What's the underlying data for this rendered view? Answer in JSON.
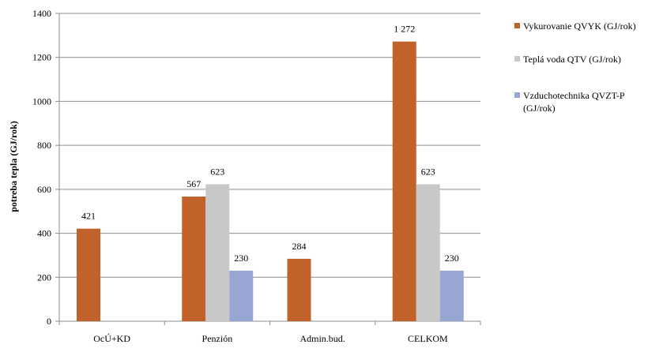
{
  "chart_data": {
    "type": "bar",
    "categories": [
      "OcÚ+KD",
      "Penzión",
      "Admin.bud.",
      "CELKOM"
    ],
    "series": [
      {
        "name": "Vykurovanie QVYK  (GJ/rok)",
        "values": [
          421,
          567,
          284,
          1272
        ],
        "labels": [
          "421",
          "567",
          "284",
          "1 272"
        ],
        "color": "#C0622A"
      },
      {
        "name": "Teplá voda QTV  (GJ/rok)",
        "values": [
          null,
          623,
          null,
          623
        ],
        "labels": [
          "",
          "623",
          "",
          "623"
        ],
        "color": "#C8C8C8"
      },
      {
        "name": "Vzduchotechnika QVZT-P (GJ/rok)",
        "values": [
          null,
          230,
          null,
          230
        ],
        "labels": [
          "",
          "230",
          "",
          "230"
        ],
        "color": "#97A6D2"
      }
    ],
    "ylabel": "potreba tepla (GJ/rok)",
    "ylim": [
      0,
      1400
    ],
    "yticks": [
      0,
      200,
      400,
      600,
      800,
      1000,
      1200,
      1400
    ],
    "grid": true,
    "legend_position": "right"
  }
}
